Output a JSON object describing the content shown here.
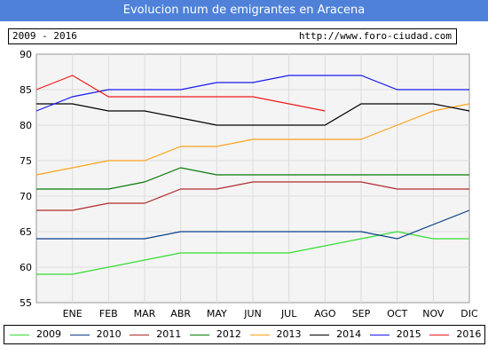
{
  "header": {
    "title": "Evolucion num de emigrantes en Aracena",
    "period": "2009 - 2016",
    "url": "http://www.foro-ciudad.com"
  },
  "chart_data": {
    "type": "line",
    "title": "Evolucion num de emigrantes en Aracena",
    "x": [
      "",
      "ENE",
      "FEB",
      "MAR",
      "ABR",
      "MAY",
      "JUN",
      "JUL",
      "AGO",
      "SEP",
      "OCT",
      "NOV",
      "DIC"
    ],
    "ylim": [
      55,
      90
    ],
    "yticks": [
      55,
      60,
      65,
      70,
      75,
      80,
      85,
      90
    ],
    "grid": true,
    "legend_position": "bottom",
    "series": [
      {
        "name": "2009",
        "color": "#33dd33",
        "values": [
          59,
          59,
          60,
          61,
          62,
          62,
          62,
          62,
          63,
          64,
          65,
          64,
          64
        ]
      },
      {
        "name": "2010",
        "color": "#0a3f8a",
        "values": [
          64,
          64,
          64,
          64,
          65,
          65,
          65,
          65,
          65,
          65,
          64,
          66,
          68
        ]
      },
      {
        "name": "2011",
        "color": "#b02a2a",
        "values": [
          68,
          68,
          69,
          69,
          71,
          71,
          72,
          72,
          72,
          72,
          71,
          71,
          71
        ]
      },
      {
        "name": "2012",
        "color": "#0a7a0a",
        "values": [
          71,
          71,
          71,
          72,
          74,
          73,
          73,
          73,
          73,
          73,
          73,
          73,
          73
        ]
      },
      {
        "name": "2013",
        "color": "#ffa21a",
        "values": [
          73,
          74,
          75,
          75,
          77,
          77,
          78,
          78,
          78,
          78,
          80,
          82,
          83
        ]
      },
      {
        "name": "2014",
        "color": "#000000",
        "values": [
          83,
          83,
          82,
          82,
          81,
          80,
          80,
          80,
          80,
          83,
          83,
          83,
          82
        ]
      },
      {
        "name": "2015",
        "color": "#1a1aee",
        "values": [
          82,
          84,
          85,
          85,
          85,
          86,
          86,
          87,
          87,
          87,
          85,
          85,
          85
        ]
      },
      {
        "name": "2016",
        "color": "#ee1a1a",
        "values": [
          85,
          87,
          84,
          84,
          84,
          84,
          84,
          83,
          82,
          null,
          null,
          null,
          null
        ]
      }
    ]
  }
}
